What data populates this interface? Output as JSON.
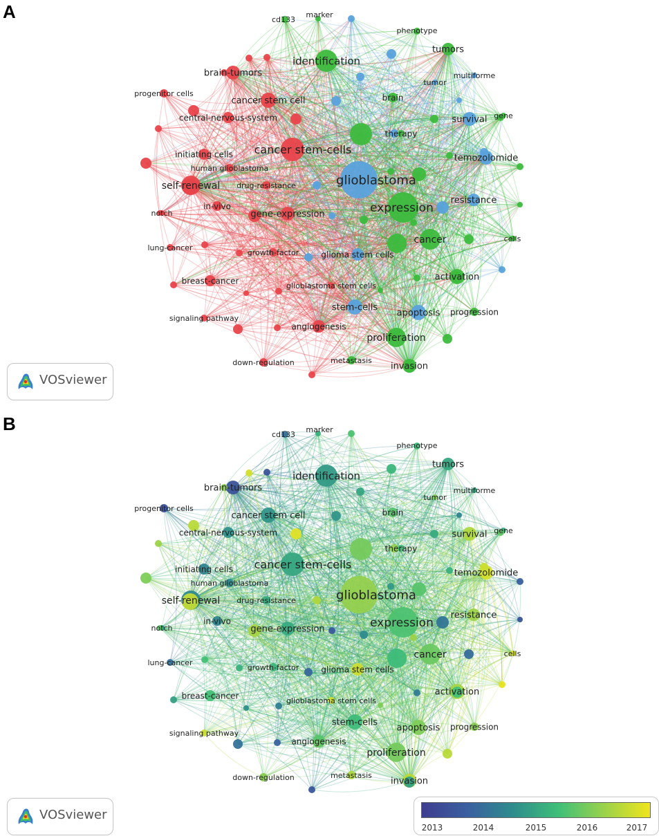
{
  "panels": {
    "a": "A",
    "b": "B"
  },
  "brand": "VOSviewer",
  "colors": {
    "red_cluster": "#e8454b",
    "green_cluster": "#3dbb3d",
    "blue_cluster": "#5aa2dc",
    "overlay_scale": [
      "#3e3e8f",
      "#3a5fa0",
      "#2e8c8c",
      "#3fbf78",
      "#9bd24a",
      "#f0e51c"
    ]
  },
  "colorbar": {
    "ticks": [
      "2013",
      "2014",
      "2015",
      "2016",
      "2017"
    ],
    "min": 2012.6,
    "max": 2017.2
  },
  "nodes": [
    {
      "id": "cd133",
      "label": "cd133",
      "cluster": "green",
      "year": 2013.9
    },
    {
      "id": "marker",
      "label": "marker",
      "cluster": "green",
      "year": 2015.1
    },
    {
      "id": "phenotype",
      "label": "phenotype",
      "cluster": "green",
      "year": 2015.3
    },
    {
      "id": "tumors",
      "label": "tumors",
      "cluster": "green",
      "year": 2014.9
    },
    {
      "id": "identification",
      "label": "identification",
      "cluster": "green",
      "year": 2014.7
    },
    {
      "id": "multiforme",
      "label": "multiforme",
      "cluster": "blue",
      "year": 2014.9
    },
    {
      "id": "tumor",
      "label": "tumor",
      "cluster": "blue",
      "year": 2016.0
    },
    {
      "id": "brain-tumors",
      "label": "brain-tumors",
      "cluster": "red",
      "year": 2013.2
    },
    {
      "id": "progenitor cells",
      "label": "progenitor cells",
      "cluster": "red",
      "year": 2013.1
    },
    {
      "id": "brain",
      "label": "brain",
      "cluster": "green",
      "year": 2015.6
    },
    {
      "id": "gene",
      "label": "gene",
      "cluster": "green",
      "year": 2015.0
    },
    {
      "id": "cancer stem cell",
      "label": "cancer stem cell",
      "cluster": "red",
      "year": 2014.6
    },
    {
      "id": "survival",
      "label": "survival",
      "cluster": "blue",
      "year": 2016.5
    },
    {
      "id": "central-nervous-system",
      "label": "central-nervous-system",
      "cluster": "red",
      "year": 2014.5
    },
    {
      "id": "therapy",
      "label": "therapy",
      "cluster": "green",
      "year": 2015.3
    },
    {
      "id": "cancer stem-cells",
      "label": "cancer stem-cells",
      "cluster": "red",
      "year": 2014.9
    },
    {
      "id": "initiating cells",
      "label": "initiating cells",
      "cluster": "red",
      "year": 2014.3
    },
    {
      "id": "temozolomide",
      "label": "temozolomide",
      "cluster": "blue",
      "year": 2016.9
    },
    {
      "id": "human glioblastoma",
      "label": "human glioblastoma",
      "cluster": "red",
      "year": 2014.4
    },
    {
      "id": "glioblastoma",
      "label": "glioblastoma",
      "cluster": "blue",
      "year": 2016.2
    },
    {
      "id": "self-renewal",
      "label": "self-renewal",
      "cluster": "red",
      "year": 2014.4
    },
    {
      "id": "drug-resistance",
      "label": "drug-resistance",
      "cluster": "red",
      "year": 2015.0
    },
    {
      "id": "resistance",
      "label": "resistance",
      "cluster": "blue",
      "year": 2016.3
    },
    {
      "id": "expression",
      "label": "expression",
      "cluster": "green",
      "year": 2015.5
    },
    {
      "id": "in-vivo",
      "label": "in-vivo",
      "cluster": "red",
      "year": 2014.3
    },
    {
      "id": "notch",
      "label": "notch",
      "cluster": "red",
      "year": 2014.6
    },
    {
      "id": "gene-expression",
      "label": "gene-expression",
      "cluster": "red",
      "year": 2015.0
    },
    {
      "id": "cancer",
      "label": "cancer",
      "cluster": "green",
      "year": 2015.8
    },
    {
      "id": "cells",
      "label": "cells",
      "cluster": "green",
      "year": 2016.8
    },
    {
      "id": "lung-cancer",
      "label": "lung-cancer",
      "cluster": "red",
      "year": 2013.9
    },
    {
      "id": "growth-factor",
      "label": "growth-factor",
      "cluster": "red",
      "year": 2015.2
    },
    {
      "id": "glioma stem cells",
      "label": "glioma stem cells",
      "cluster": "blue",
      "year": 2016.8
    },
    {
      "id": "activation",
      "label": "activation",
      "cluster": "green",
      "year": 2016.4
    },
    {
      "id": "breast-cancer",
      "label": "breast-cancer",
      "cluster": "red",
      "year": 2015.4
    },
    {
      "id": "glioblastoma stem cells",
      "label": "glioblastoma stem cells",
      "cluster": "red",
      "year": 2016.9
    },
    {
      "id": "stem-cells",
      "label": "stem-cells",
      "cluster": "blue",
      "year": 2015.3
    },
    {
      "id": "apoptosis",
      "label": "apoptosis",
      "cluster": "blue",
      "year": 2016.0
    },
    {
      "id": "progression",
      "label": "progression",
      "cluster": "green",
      "year": 2016.1
    },
    {
      "id": "signaling pathway",
      "label": "signaling pathway",
      "cluster": "red",
      "year": 2016.8
    },
    {
      "id": "angiogenesis",
      "label": "angiogenesis",
      "cluster": "red",
      "year": 2015.6
    },
    {
      "id": "proliferation",
      "label": "proliferation",
      "cluster": "green",
      "year": 2015.9
    },
    {
      "id": "down-regulation",
      "label": "down-regulation",
      "cluster": "red",
      "year": 2016.1
    },
    {
      "id": "metastasis",
      "label": "metastasis",
      "cluster": "green",
      "year": 2016.5
    },
    {
      "id": "invasion",
      "label": "invasion",
      "cluster": "green",
      "year": 2016.6
    }
  ]
}
